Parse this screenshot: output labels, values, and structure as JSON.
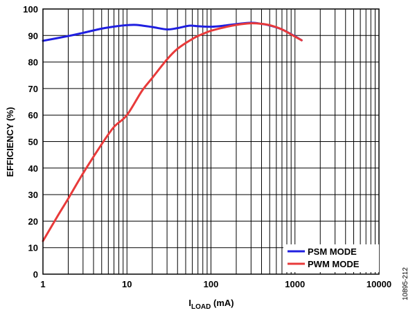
{
  "chart_data": {
    "type": "line",
    "title": "",
    "xlabel_main": "I",
    "xlabel_sub": "LOAD",
    "xlabel_unit": " (mA)",
    "ylabel": "EFFICIENCY (%)",
    "x_scale": "log",
    "xlim": [
      1,
      10000
    ],
    "ylim": [
      0,
      100
    ],
    "grid": true,
    "legend_position": "bottom-right",
    "x_ticks": [
      "1",
      "10",
      "100",
      "1000",
      "10000"
    ],
    "y_ticks": [
      "0",
      "10",
      "20",
      "30",
      "40",
      "50",
      "60",
      "70",
      "80",
      "90",
      "100"
    ],
    "series": [
      {
        "name": "PSM MODE",
        "color": "#1f1fe0",
        "x": [
          1,
          2,
          3,
          5,
          8,
          10,
          13,
          20,
          30,
          40,
          55,
          70,
          100,
          150,
          200,
          300,
          400,
          500,
          700,
          1000,
          1200
        ],
        "y": [
          88,
          89.8,
          91,
          92.6,
          93.6,
          93.9,
          94,
          93.2,
          92.3,
          92.8,
          93.7,
          93.5,
          93.3,
          93.8,
          94.3,
          94.8,
          94.4,
          93.8,
          92.3,
          89.7,
          88.2
        ]
      },
      {
        "name": "PWM MODE",
        "color": "#e83a3a",
        "x": [
          1,
          1.5,
          2,
          3,
          5,
          7,
          10,
          15,
          20,
          30,
          40,
          60,
          80,
          100,
          150,
          200,
          300,
          400,
          500,
          700,
          1000,
          1200
        ],
        "y": [
          12.5,
          22,
          28.5,
          38,
          49,
          55.5,
          60,
          69,
          74,
          81,
          85,
          88.7,
          90.6,
          91.8,
          93.2,
          94,
          94.6,
          94.4,
          93.9,
          92.3,
          89.6,
          88.2
        ]
      }
    ]
  },
  "figure_id": "10895-212"
}
